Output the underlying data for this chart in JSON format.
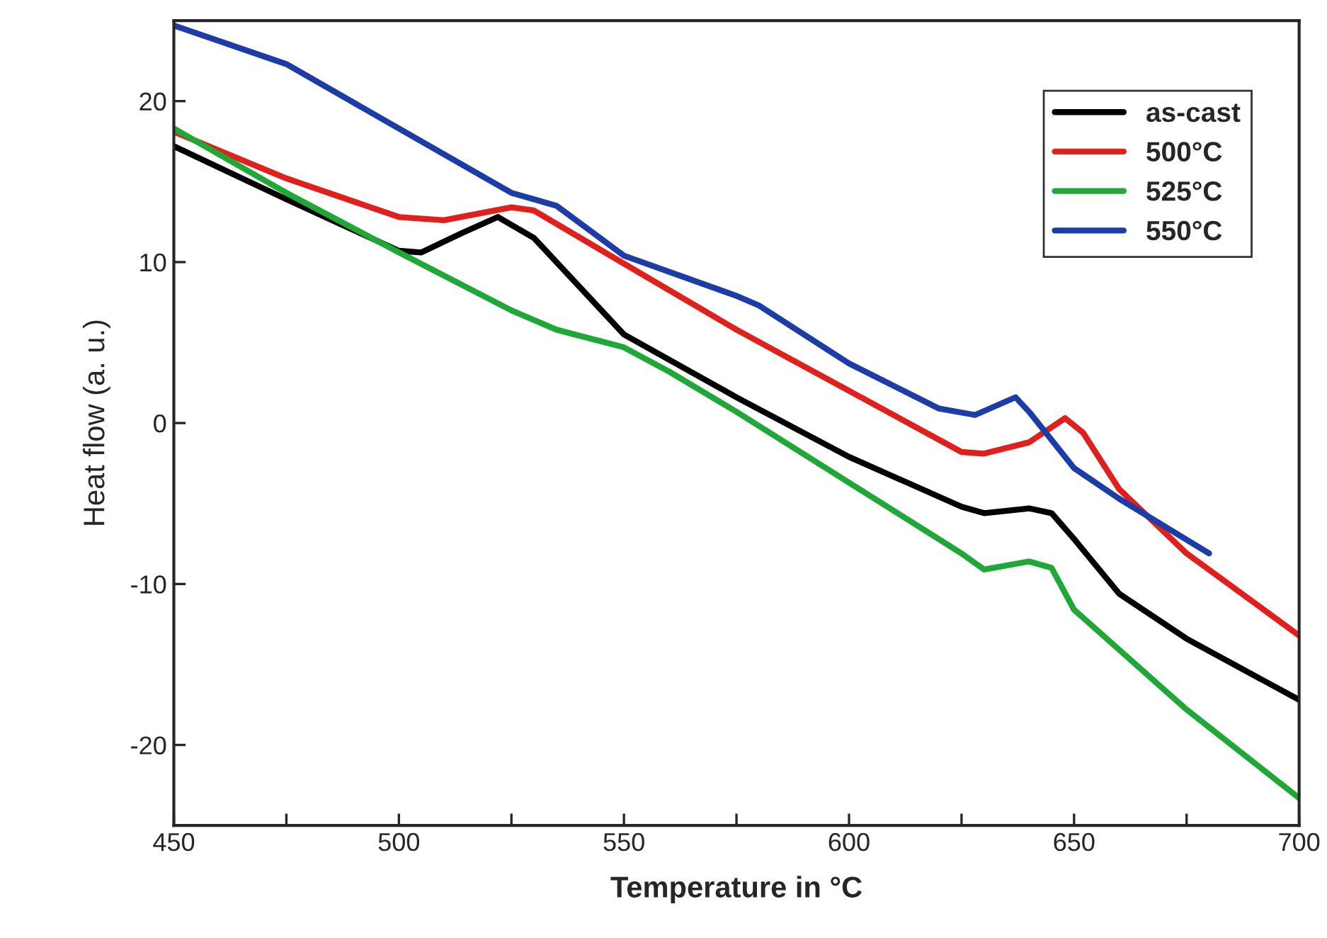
{
  "chart_data": {
    "type": "line",
    "xlabel": "Temperature in °C",
    "ylabel": "Heat flow (a. u.)",
    "xlim": [
      450,
      700
    ],
    "ylim": [
      -25,
      25
    ],
    "xticks": [
      450,
      {
        "value": 475,
        "label": null
      },
      500,
      {
        "value": 525,
        "label": null
      },
      550,
      {
        "value": 575,
        "label": null
      },
      600,
      {
        "value": 625,
        "label": null
      },
      650,
      {
        "value": 675,
        "label": null
      },
      700
    ],
    "yticks": [
      -20,
      -10,
      0,
      10,
      20
    ],
    "grid": false,
    "legend": "top right",
    "marker": "none",
    "line_style": "solid",
    "series": [
      {
        "name": "as-cast",
        "color": "#000000",
        "x": [
          450,
          475,
          500,
          505,
          514,
          522,
          530,
          550,
          575,
          600,
          625,
          630,
          640,
          645,
          650,
          660,
          675,
          700
        ],
        "values": [
          17.2,
          13.9,
          10.7,
          10.6,
          11.8,
          12.8,
          11.5,
          5.5,
          1.6,
          -2.1,
          -5.2,
          -5.6,
          -5.3,
          -5.6,
          -7.2,
          -10.6,
          -13.4,
          -17.2
        ]
      },
      {
        "name": "500°C",
        "color": "#e0201c",
        "x": [
          450,
          475,
          500,
          510,
          525,
          530,
          550,
          575,
          600,
          625,
          630,
          640,
          648,
          652,
          660,
          675,
          700
        ],
        "values": [
          18.1,
          15.2,
          12.8,
          12.6,
          13.4,
          13.2,
          9.9,
          5.8,
          2.0,
          -1.8,
          -1.9,
          -1.2,
          0.3,
          -0.6,
          -4.1,
          -8.1,
          -13.2
        ]
      },
      {
        "name": "525°C",
        "color": "#1fa838",
        "x": [
          450,
          475,
          500,
          525,
          535,
          550,
          560,
          575,
          600,
          625,
          630,
          640,
          645,
          650,
          675,
          700
        ],
        "values": [
          18.3,
          14.3,
          10.6,
          7.0,
          5.8,
          4.7,
          3.2,
          0.7,
          -3.7,
          -8.1,
          -9.1,
          -8.6,
          -9.0,
          -11.6,
          -17.8,
          -23.3
        ]
      },
      {
        "name": "550°C",
        "color": "#1c3ca8",
        "x": [
          450,
          475,
          500,
          525,
          535,
          550,
          575,
          580,
          600,
          620,
          628,
          637,
          640,
          650,
          660,
          680
        ],
        "values": [
          24.7,
          22.3,
          18.3,
          14.3,
          13.5,
          10.4,
          7.9,
          7.3,
          3.7,
          0.9,
          0.5,
          1.6,
          0.7,
          -2.8,
          -4.7,
          -8.1
        ]
      }
    ]
  }
}
